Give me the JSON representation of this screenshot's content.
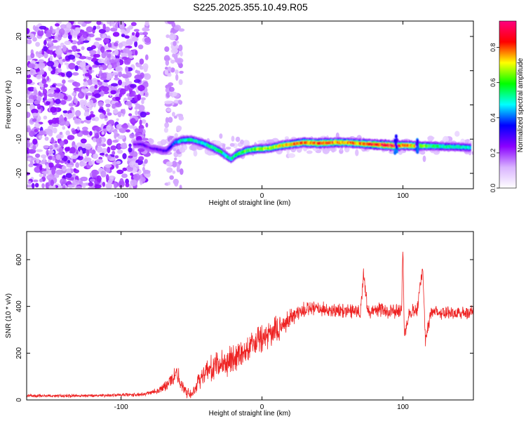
{
  "page": {
    "title": "S225.2025.355.10.49.R05"
  },
  "chart_data": [
    {
      "type": "heatmap",
      "xlabel": "Height of straight line (km)",
      "ylabel": "Frequency (Hz)",
      "xlim": [
        -167,
        150
      ],
      "ylim": [
        -24.5,
        24.5
      ],
      "xticks": [
        -100,
        0,
        100
      ],
      "yticks": [
        -20,
        -10,
        0,
        10,
        20
      ],
      "colorbar": {
        "label": "Normalized spectral amplitude",
        "range": [
          0,
          0.95
        ],
        "ticks": [
          0.0,
          0.2,
          0.4,
          0.6,
          0.8
        ],
        "colormap": [
          "#ffffff",
          "#d9b3ff",
          "#8a00ff",
          "#0000ff",
          "#00ffff",
          "#00ff00",
          "#ffff00",
          "#ff0000",
          "#ff0080"
        ]
      },
      "noise_region_x": [
        -167,
        -81
      ],
      "sparse_noise_region_x": [
        -68,
        -57
      ],
      "signal_trace": {
        "x": [
          -91,
          -85,
          -80,
          -74,
          -68,
          -62,
          -56,
          -50,
          -45,
          -40,
          -35,
          -30,
          -25,
          -22,
          -18,
          -12,
          -6,
          0,
          6,
          12,
          20,
          30,
          40,
          50,
          60,
          70,
          80,
          90,
          95,
          100,
          110,
          120,
          130,
          140,
          148
        ],
        "y": [
          -11.5,
          -11.5,
          -12.5,
          -13,
          -13.5,
          -11,
          -10.3,
          -10.2,
          -10.8,
          -11.5,
          -12.5,
          -13.5,
          -15,
          -15.8,
          -14.5,
          -13.5,
          -13,
          -12.8,
          -12.6,
          -12,
          -11.5,
          -11,
          -11.2,
          -11,
          -11,
          -11.3,
          -11.6,
          -11.8,
          -12,
          -11.8,
          -12,
          -12,
          -12.2,
          -12.3,
          -12.5
        ],
        "intensity": [
          0.22,
          0.3,
          0.25,
          0.3,
          0.3,
          0.45,
          0.55,
          0.55,
          0.5,
          0.55,
          0.6,
          0.6,
          0.55,
          0.55,
          0.6,
          0.65,
          0.65,
          0.7,
          0.7,
          0.75,
          0.8,
          0.85,
          0.85,
          0.85,
          0.8,
          0.8,
          0.9,
          0.95,
          0.9,
          0.85,
          0.8,
          0.6,
          0.55,
          0.55,
          0.55
        ]
      }
    },
    {
      "type": "line",
      "xlabel": "Height of straight line (km)",
      "ylabel": "SNR (10 * v/v)",
      "xlim": [
        -167,
        150
      ],
      "ylim": [
        0,
        720
      ],
      "xticks": [
        -100,
        0,
        100
      ],
      "yticks": [
        0,
        200,
        400,
        600
      ],
      "series": [
        {
          "name": "SNR",
          "color": "#ee2222",
          "x": [
            -167,
            -150,
            -130,
            -110,
            -90,
            -80,
            -72,
            -65,
            -60,
            -55,
            -50,
            -45,
            -40,
            -30,
            -20,
            -10,
            0,
            10,
            15,
            20,
            25,
            30,
            40,
            50,
            60,
            70,
            72,
            75,
            80,
            90,
            99,
            100,
            101,
            105,
            110,
            114,
            116,
            120,
            130,
            140,
            150
          ],
          "y": [
            18,
            18,
            18,
            20,
            22,
            30,
            45,
            80,
            110,
            40,
            20,
            85,
            120,
            150,
            180,
            220,
            260,
            300,
            320,
            350,
            370,
            385,
            390,
            380,
            385,
            380,
            540,
            380,
            385,
            380,
            380,
            660,
            270,
            380,
            380,
            560,
            250,
            380,
            375,
            370,
            380
          ],
          "noise_amplitude": [
            7,
            7,
            7,
            7,
            8,
            10,
            15,
            30,
            40,
            25,
            20,
            35,
            50,
            60,
            60,
            60,
            60,
            55,
            50,
            45,
            40,
            35,
            30,
            30,
            30,
            30,
            30,
            30,
            30,
            30,
            30,
            30,
            30,
            30,
            30,
            30,
            30,
            30,
            30,
            30,
            30
          ]
        }
      ]
    }
  ]
}
